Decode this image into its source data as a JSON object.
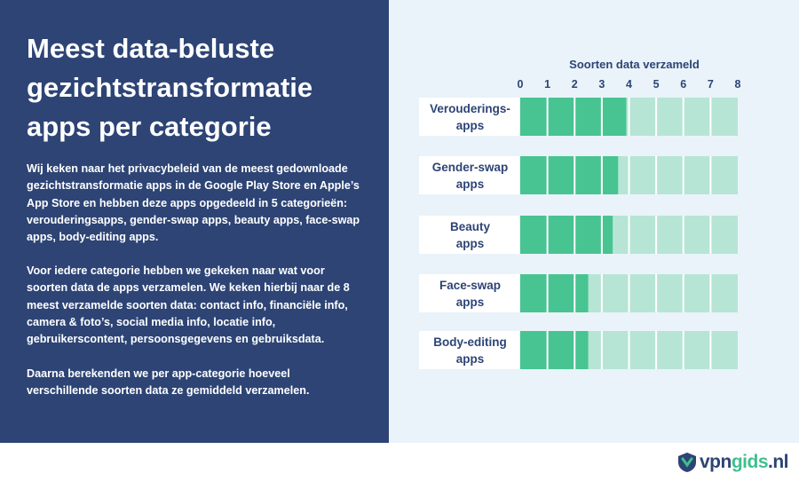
{
  "left": {
    "title_lines": [
      "Meest data-beluste",
      "gezichtstransformatie",
      "apps per categorie"
    ],
    "paragraph1": [
      "Wij keken naar het privacybeleid  van de meest gedownloade",
      "gezichtstransformatie apps in de Google Play Store en Apple’s",
      "App Store en hebben deze apps opgedeeld in 5 categorieën:",
      "verouderingsapps, gender-swap apps, beauty apps, face-swap",
      "apps, body-editing apps."
    ],
    "paragraph2": [
      "Voor iedere categorie hebben we gekeken naar wat voor",
      "soorten data de apps verzamelen. We keken hierbij naar de 8",
      "meest verzamelde soorten data: contact info, financiële info,",
      "camera & foto’s, social media info, locatie info,",
      "gebruikerscontent, persoonsgegevens en gebruiksdata."
    ],
    "paragraph3": [
      "Daarna berekenden we per app-categorie hoeveel",
      "verschillende soorten data ze gemiddeld verzamelen."
    ]
  },
  "logo": {
    "part1": "vpn",
    "part2": "gids",
    "part3": ".nl"
  },
  "colors": {
    "panel": "#2d4475",
    "background": "#eaf3f9",
    "filled": "#47c491",
    "track": "#b6e5d5"
  },
  "chart_data": {
    "type": "bar",
    "orientation": "horizontal",
    "title": "Soorten data verzameld",
    "categories": [
      [
        "Verouderings-",
        "apps"
      ],
      [
        "Gender-swap",
        "apps"
      ],
      [
        "Beauty",
        "apps"
      ],
      [
        "Face-swap",
        "apps"
      ],
      [
        "Body-editing",
        "apps"
      ]
    ],
    "values": [
      3.9,
      3.6,
      3.4,
      2.5,
      2.5
    ],
    "xlim": [
      0,
      8
    ],
    "xticks": [
      0,
      1,
      2,
      3,
      4,
      5,
      6,
      7,
      8
    ],
    "grid": "per-unit segments"
  }
}
